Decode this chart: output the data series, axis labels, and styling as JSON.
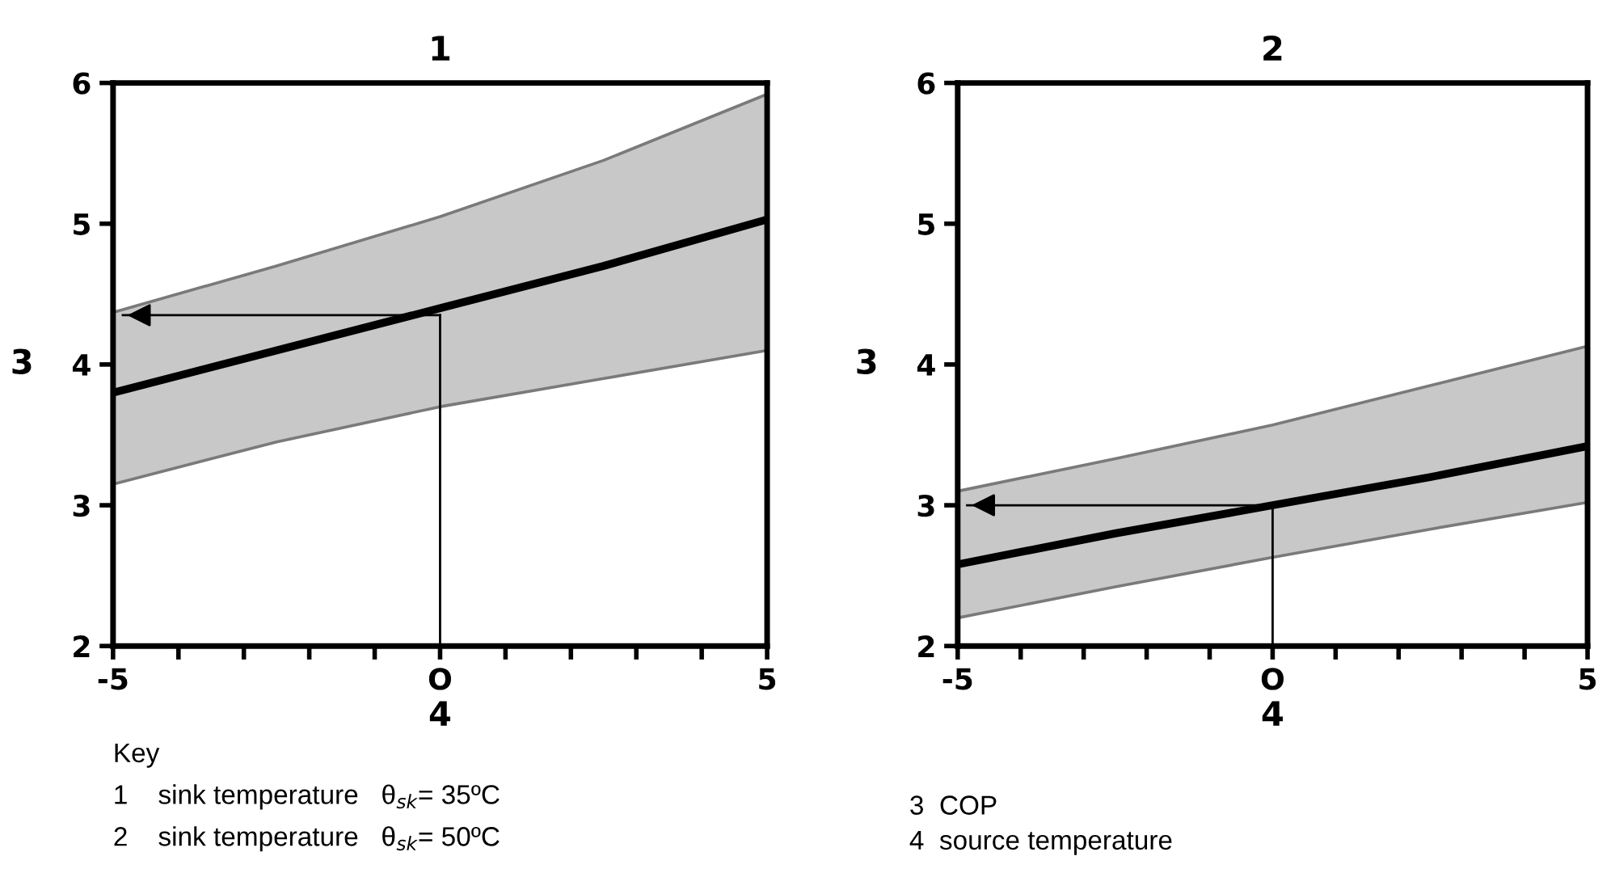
{
  "chart_data": [
    {
      "type": "line",
      "title": "1",
      "xlabel": "4",
      "ylabel": "3",
      "x": [
        -5,
        -2.5,
        0,
        2.5,
        5
      ],
      "series": [
        {
          "color": "#000000",
          "values": [
            3.8,
            4.1,
            4.4,
            4.7,
            5.03
          ],
          "lower": [
            3.15,
            3.45,
            3.7,
            3.9,
            4.1
          ],
          "upper": [
            4.37,
            4.7,
            5.05,
            5.45,
            5.92
          ]
        }
      ],
      "xlim": [
        -5,
        5
      ],
      "ylim": [
        2,
        6
      ],
      "xticks": [
        -5,
        {
          "value": -4,
          "label": null
        },
        {
          "value": -3,
          "label": null
        },
        {
          "value": -2,
          "label": null
        },
        {
          "value": -1,
          "label": null
        },
        {
          "value": 0,
          "label": "O"
        },
        {
          "value": 1,
          "label": null
        },
        {
          "value": 2,
          "label": null
        },
        {
          "value": 3,
          "label": null
        },
        {
          "value": 4,
          "label": null
        },
        5
      ],
      "yticks": [
        2,
        3,
        4,
        5,
        6
      ],
      "ref_lines": [
        {
          "axis": "x",
          "value": 0,
          "color": "#000000"
        },
        {
          "axis": "y",
          "value": 4.35,
          "color": "#000000"
        }
      ],
      "grid": false,
      "annotations": [
        "Key",
        "1    sink temperature   θ$_{sk}$= 35ºC",
        "2    sink temperature   θ$_{sk}$= 50ºC"
      ]
    },
    {
      "type": "line",
      "title": "2",
      "xlabel": "4",
      "ylabel": "3",
      "x": [
        -5,
        -2.5,
        0,
        2.5,
        5
      ],
      "series": [
        {
          "color": "#000000",
          "values": [
            2.58,
            2.8,
            3.0,
            3.2,
            3.42
          ],
          "lower": [
            2.2,
            2.42,
            2.63,
            2.83,
            3.02
          ],
          "upper": [
            3.1,
            3.33,
            3.57,
            3.85,
            4.13
          ]
        }
      ],
      "xlim": [
        -5,
        5
      ],
      "ylim": [
        2,
        6
      ],
      "xticks": [
        -5,
        {
          "value": -4,
          "label": null
        },
        {
          "value": -3,
          "label": null
        },
        {
          "value": -2,
          "label": null
        },
        {
          "value": -1,
          "label": null
        },
        {
          "value": 0,
          "label": "O"
        },
        {
          "value": 1,
          "label": null
        },
        {
          "value": 2,
          "label": null
        },
        {
          "value": 3,
          "label": null
        },
        {
          "value": 4,
          "label": null
        },
        5
      ],
      "yticks": [
        2,
        3,
        4,
        5,
        6
      ],
      "ref_lines": [
        {
          "axis": "x",
          "value": 0,
          "color": "#000000"
        },
        {
          "axis": "y",
          "value": 3.0,
          "color": "#000000"
        }
      ],
      "grid": false,
      "annotations": [
        "3  COP",
        "4  source temperature"
      ]
    }
  ]
}
